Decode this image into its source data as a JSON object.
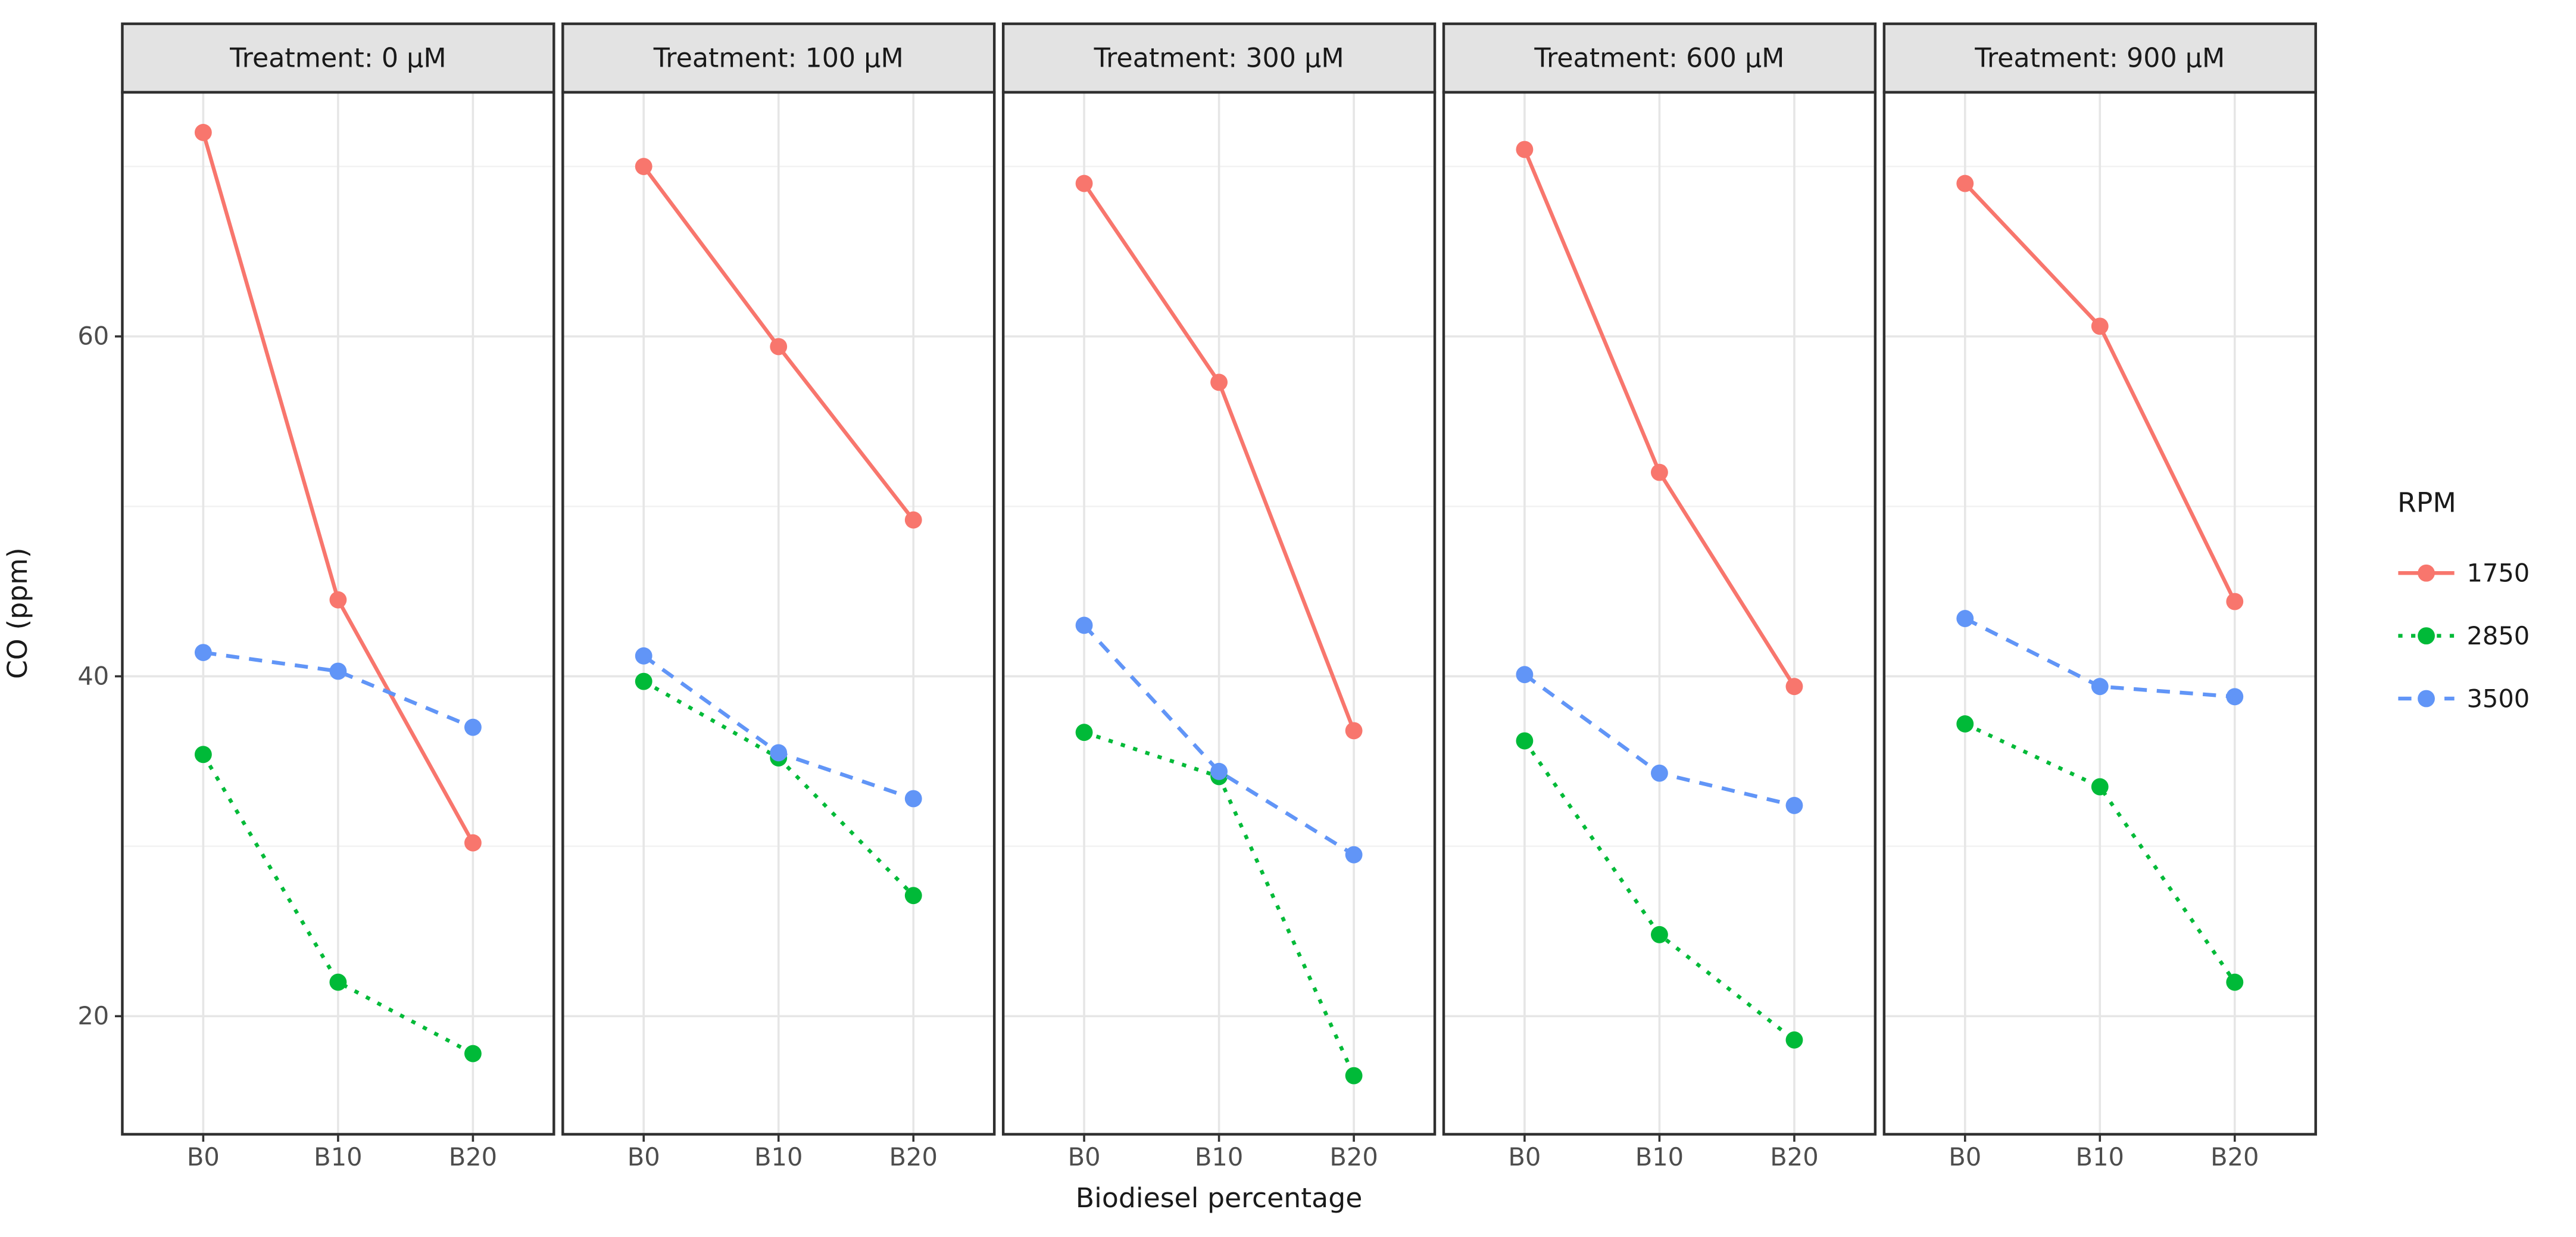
{
  "chart_data": {
    "type": "line",
    "faceted": true,
    "facet_variable": "Treatment",
    "xlabel": "Biodiesel percentage",
    "ylabel": "CO (ppm)",
    "categories": [
      "B0",
      "B10",
      "B20"
    ],
    "yticks": [
      {
        "value": 20,
        "label": "20"
      },
      {
        "value": 40,
        "label": "40"
      },
      {
        "value": 60,
        "label": "60"
      }
    ],
    "minor_gridlines": [
      30,
      50,
      70
    ],
    "ylim": [
      13.1,
      74.4
    ],
    "grid": true,
    "legend": {
      "title": "RPM",
      "position": "right",
      "entries": [
        {
          "name": "1750",
          "color": "#F8766D",
          "linetype": "solid"
        },
        {
          "name": "2850",
          "color": "#00BA38",
          "linetype": "dotted"
        },
        {
          "name": "3500",
          "color": "#6195F7",
          "linetype": "dashed"
        }
      ]
    },
    "panels": [
      {
        "facet": "Treatment: 0 µM",
        "series": [
          {
            "name": "1750",
            "values": [
              72.0,
              44.5,
              30.2
            ]
          },
          {
            "name": "2850",
            "values": [
              35.4,
              22.0,
              17.8
            ]
          },
          {
            "name": "3500",
            "values": [
              41.4,
              40.3,
              37.0
            ]
          }
        ]
      },
      {
        "facet": "Treatment: 100 µM",
        "series": [
          {
            "name": "1750",
            "values": [
              70.0,
              59.4,
              49.2
            ]
          },
          {
            "name": "2850",
            "values": [
              39.7,
              35.2,
              27.1
            ]
          },
          {
            "name": "3500",
            "values": [
              41.2,
              35.5,
              32.8
            ]
          }
        ]
      },
      {
        "facet": "Treatment: 300 µM",
        "series": [
          {
            "name": "1750",
            "values": [
              69.0,
              57.3,
              36.8
            ]
          },
          {
            "name": "2850",
            "values": [
              36.7,
              34.1,
              16.5
            ]
          },
          {
            "name": "3500",
            "values": [
              43.0,
              34.4,
              29.5
            ]
          }
        ]
      },
      {
        "facet": "Treatment: 600 µM",
        "series": [
          {
            "name": "1750",
            "values": [
              71.0,
              52.0,
              39.4
            ]
          },
          {
            "name": "2850",
            "values": [
              36.2,
              24.8,
              18.6
            ]
          },
          {
            "name": "3500",
            "values": [
              40.1,
              34.3,
              32.4
            ]
          }
        ]
      },
      {
        "facet": "Treatment: 900 µM",
        "series": [
          {
            "name": "1750",
            "values": [
              69.0,
              60.6,
              44.4
            ]
          },
          {
            "name": "2850",
            "values": [
              37.2,
              33.5,
              22.0
            ]
          },
          {
            "name": "3500",
            "values": [
              43.4,
              39.4,
              38.8
            ]
          }
        ]
      }
    ],
    "style": {
      "panel_background": "#ffffff",
      "panel_border": "#2f2f2f",
      "header_background": "#e3e3e3",
      "header_text": "#1a1a1a",
      "grid_major": "#e6e6e6",
      "grid_minor": "#f2f2f2",
      "tick_color": "#333333",
      "tick_label_color": "#4d4d4d",
      "axis_title_color": "#1a1a1a",
      "series_colors": {
        "1750": "#F8766D",
        "2850": "#00BA38",
        "3500": "#6195F7"
      },
      "series_linetypes": {
        "1750": "solid",
        "2850": "dotted",
        "3500": "dashed"
      }
    }
  }
}
